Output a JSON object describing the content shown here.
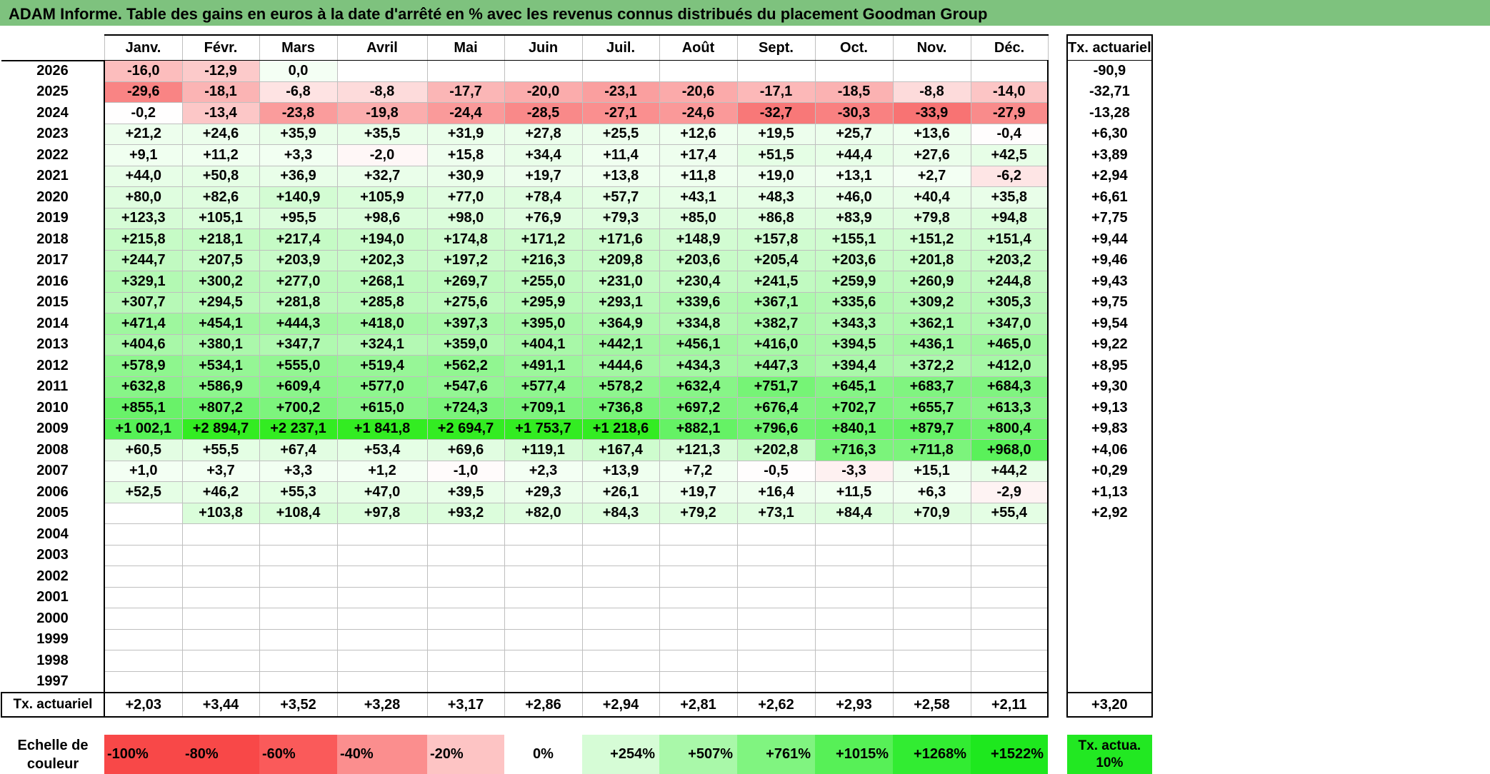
{
  "title": "ADAM Informe. Table des gains en euros à la date d'arrêté en % avec les revenus connus distribués du placement Goodman Group",
  "months": [
    "Janv.",
    "Févr.",
    "Mars",
    "Avril",
    "Mai",
    "Juin",
    "Juil.",
    "Août",
    "Sept.",
    "Oct.",
    "Nov.",
    "Déc."
  ],
  "actuarial_header": "Tx. actuariel",
  "rows": [
    {
      "year": "2026",
      "values": [
        "-16,0",
        "-12,9",
        "0,0",
        "",
        "",
        "",
        "",
        "",
        "",
        "",
        "",
        ""
      ],
      "actuarial": "-90,9"
    },
    {
      "year": "2025",
      "values": [
        "-29,6",
        "-18,1",
        "-6,8",
        "-8,8",
        "-17,7",
        "-20,0",
        "-23,1",
        "-20,6",
        "-17,1",
        "-18,5",
        "-8,8",
        "-14,0"
      ],
      "actuarial": "-32,71"
    },
    {
      "year": "2024",
      "values": [
        "-0,2",
        "-13,4",
        "-23,8",
        "-19,8",
        "-24,4",
        "-28,5",
        "-27,1",
        "-24,6",
        "-32,7",
        "-30,3",
        "-33,9",
        "-27,9"
      ],
      "actuarial": "-13,28"
    },
    {
      "year": "2023",
      "values": [
        "+21,2",
        "+24,6",
        "+35,9",
        "+35,5",
        "+31,9",
        "+27,8",
        "+25,5",
        "+12,6",
        "+19,5",
        "+25,7",
        "+13,6",
        "-0,4"
      ],
      "actuarial": "+6,30"
    },
    {
      "year": "2022",
      "values": [
        "+9,1",
        "+11,2",
        "+3,3",
        "-2,0",
        "+15,8",
        "+34,4",
        "+11,4",
        "+17,4",
        "+51,5",
        "+44,4",
        "+27,6",
        "+42,5"
      ],
      "actuarial": "+3,89"
    },
    {
      "year": "2021",
      "values": [
        "+44,0",
        "+50,8",
        "+36,9",
        "+32,7",
        "+30,9",
        "+19,7",
        "+13,8",
        "+11,8",
        "+19,0",
        "+13,1",
        "+2,7",
        "-6,2"
      ],
      "actuarial": "+2,94"
    },
    {
      "year": "2020",
      "values": [
        "+80,0",
        "+82,6",
        "+140,9",
        "+105,9",
        "+77,0",
        "+78,4",
        "+57,7",
        "+43,1",
        "+48,3",
        "+46,0",
        "+40,4",
        "+35,8"
      ],
      "actuarial": "+6,61"
    },
    {
      "year": "2019",
      "values": [
        "+123,3",
        "+105,1",
        "+95,5",
        "+98,6",
        "+98,0",
        "+76,9",
        "+79,3",
        "+85,0",
        "+86,8",
        "+83,9",
        "+79,8",
        "+94,8"
      ],
      "actuarial": "+7,75"
    },
    {
      "year": "2018",
      "values": [
        "+215,8",
        "+218,1",
        "+217,4",
        "+194,0",
        "+174,8",
        "+171,2",
        "+171,6",
        "+148,9",
        "+157,8",
        "+155,1",
        "+151,2",
        "+151,4"
      ],
      "actuarial": "+9,44"
    },
    {
      "year": "2017",
      "values": [
        "+244,7",
        "+207,5",
        "+203,9",
        "+202,3",
        "+197,2",
        "+216,3",
        "+209,8",
        "+203,6",
        "+205,4",
        "+203,6",
        "+201,8",
        "+203,2"
      ],
      "actuarial": "+9,46"
    },
    {
      "year": "2016",
      "values": [
        "+329,1",
        "+300,2",
        "+277,0",
        "+268,1",
        "+269,7",
        "+255,0",
        "+231,0",
        "+230,4",
        "+241,5",
        "+259,9",
        "+260,9",
        "+244,8"
      ],
      "actuarial": "+9,43"
    },
    {
      "year": "2015",
      "values": [
        "+307,7",
        "+294,5",
        "+281,8",
        "+285,8",
        "+275,6",
        "+295,9",
        "+293,1",
        "+339,6",
        "+367,1",
        "+335,6",
        "+309,2",
        "+305,3"
      ],
      "actuarial": "+9,75"
    },
    {
      "year": "2014",
      "values": [
        "+471,4",
        "+454,1",
        "+444,3",
        "+418,0",
        "+397,3",
        "+395,0",
        "+364,9",
        "+334,8",
        "+382,7",
        "+343,3",
        "+362,1",
        "+347,0"
      ],
      "actuarial": "+9,54"
    },
    {
      "year": "2013",
      "values": [
        "+404,6",
        "+380,1",
        "+347,7",
        "+324,1",
        "+359,0",
        "+404,1",
        "+442,1",
        "+456,1",
        "+416,0",
        "+394,5",
        "+436,1",
        "+465,0"
      ],
      "actuarial": "+9,22"
    },
    {
      "year": "2012",
      "values": [
        "+578,9",
        "+534,1",
        "+555,0",
        "+519,4",
        "+562,2",
        "+491,1",
        "+444,6",
        "+434,3",
        "+447,3",
        "+394,4",
        "+372,2",
        "+412,0"
      ],
      "actuarial": "+8,95"
    },
    {
      "year": "2011",
      "values": [
        "+632,8",
        "+586,9",
        "+609,4",
        "+577,0",
        "+547,6",
        "+577,4",
        "+578,2",
        "+632,4",
        "+751,7",
        "+645,1",
        "+683,7",
        "+684,3"
      ],
      "actuarial": "+9,30"
    },
    {
      "year": "2010",
      "values": [
        "+855,1",
        "+807,2",
        "+700,2",
        "+615,0",
        "+724,3",
        "+709,1",
        "+736,8",
        "+697,2",
        "+676,4",
        "+702,7",
        "+655,7",
        "+613,3"
      ],
      "actuarial": "+9,13"
    },
    {
      "year": "2009",
      "values": [
        "+1 002,1",
        "+2 894,7",
        "+2 237,1",
        "+1 841,8",
        "+2 694,7",
        "+1 753,7",
        "+1 218,6",
        "+882,1",
        "+796,6",
        "+840,1",
        "+879,7",
        "+800,4"
      ],
      "actuarial": "+9,83"
    },
    {
      "year": "2008",
      "values": [
        "+60,5",
        "+55,5",
        "+67,4",
        "+53,4",
        "+69,6",
        "+119,1",
        "+167,4",
        "+121,3",
        "+202,8",
        "+716,3",
        "+711,8",
        "+968,0"
      ],
      "actuarial": "+4,06"
    },
    {
      "year": "2007",
      "values": [
        "+1,0",
        "+3,7",
        "+3,3",
        "+1,2",
        "-1,0",
        "+2,3",
        "+13,9",
        "+7,2",
        "-0,5",
        "-3,3",
        "+15,1",
        "+44,2"
      ],
      "actuarial": "+0,29"
    },
    {
      "year": "2006",
      "values": [
        "+52,5",
        "+46,2",
        "+55,3",
        "+47,0",
        "+39,5",
        "+29,3",
        "+26,1",
        "+19,7",
        "+16,4",
        "+11,5",
        "+6,3",
        "-2,9"
      ],
      "actuarial": "+1,13"
    },
    {
      "year": "2005",
      "values": [
        "",
        "+103,8",
        "+108,4",
        "+97,8",
        "+93,2",
        "+82,0",
        "+84,3",
        "+79,2",
        "+73,1",
        "+84,4",
        "+70,9",
        "+55,4"
      ],
      "actuarial": "+2,92"
    },
    {
      "year": "2004",
      "values": [
        "",
        "",
        "",
        "",
        "",
        "",
        "",
        "",
        "",
        "",
        "",
        ""
      ],
      "actuarial": ""
    },
    {
      "year": "2003",
      "values": [
        "",
        "",
        "",
        "",
        "",
        "",
        "",
        "",
        "",
        "",
        "",
        ""
      ],
      "actuarial": ""
    },
    {
      "year": "2002",
      "values": [
        "",
        "",
        "",
        "",
        "",
        "",
        "",
        "",
        "",
        "",
        "",
        ""
      ],
      "actuarial": ""
    },
    {
      "year": "2001",
      "values": [
        "",
        "",
        "",
        "",
        "",
        "",
        "",
        "",
        "",
        "",
        "",
        ""
      ],
      "actuarial": ""
    },
    {
      "year": "2000",
      "values": [
        "",
        "",
        "",
        "",
        "",
        "",
        "",
        "",
        "",
        "",
        "",
        ""
      ],
      "actuarial": ""
    },
    {
      "year": "1999",
      "values": [
        "",
        "",
        "",
        "",
        "",
        "",
        "",
        "",
        "",
        "",
        "",
        ""
      ],
      "actuarial": ""
    },
    {
      "year": "1998",
      "values": [
        "",
        "",
        "",
        "",
        "",
        "",
        "",
        "",
        "",
        "",
        "",
        ""
      ],
      "actuarial": ""
    },
    {
      "year": "1997",
      "values": [
        "",
        "",
        "",
        "",
        "",
        "",
        "",
        "",
        "",
        "",
        "",
        ""
      ],
      "actuarial": ""
    }
  ],
  "totals": {
    "label": "Tx. actuariel",
    "values": [
      "+2,03",
      "+3,44",
      "+3,52",
      "+3,28",
      "+3,17",
      "+2,86",
      "+2,94",
      "+2,81",
      "+2,62",
      "+2,93",
      "+2,58",
      "+2,11"
    ],
    "actuarial": "+3,20"
  },
  "scale": {
    "label": "Echelle de couleur",
    "items": [
      {
        "text": "-100%",
        "color": "#f84848",
        "align": "left"
      },
      {
        "text": "-80%",
        "color": "#f84848",
        "align": "left"
      },
      {
        "text": "-60%",
        "color": "#fa5a5a",
        "align": "left"
      },
      {
        "text": "-40%",
        "color": "#fb8e8e",
        "align": "left"
      },
      {
        "text": "-20%",
        "color": "#fdc4c4",
        "align": "left"
      },
      {
        "text": "0%",
        "color": "#ffffff",
        "align": "center"
      },
      {
        "text": "+254%",
        "color": "#d6fcd6",
        "align": "right"
      },
      {
        "text": "+507%",
        "color": "#a9f8a9",
        "align": "right"
      },
      {
        "text": "+761%",
        "color": "#80f480",
        "align": "right"
      },
      {
        "text": "+1015%",
        "color": "#57f057",
        "align": "right"
      },
      {
        "text": "+1268%",
        "color": "#32ec32",
        "align": "right"
      },
      {
        "text": "+1522%",
        "color": "#1ee81e",
        "align": "right"
      }
    ],
    "actuarial_legend": "Tx. actua. 10%",
    "actuarial_legend_color": "#22e822"
  },
  "colors": {
    "title_bar": "#7ec27e",
    "negative_max": "#f84848",
    "positive_max": "#1ee81e"
  }
}
